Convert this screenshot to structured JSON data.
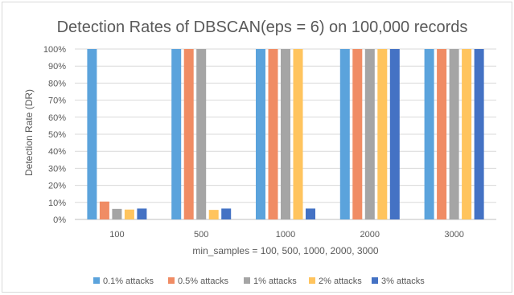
{
  "chart_data": {
    "type": "bar",
    "title": "Detection Rates of DBSCAN(eps = 6) on 100,000 records",
    "xlabel": "min_samples = 100, 500, 1000, 2000, 3000",
    "ylabel": "Detection Rate (DR)",
    "ylim": [
      0,
      100
    ],
    "ytick_values": [
      0,
      10,
      20,
      30,
      40,
      50,
      60,
      70,
      80,
      90,
      100
    ],
    "ytick_labels": [
      "0%",
      "10%",
      "20%",
      "30%",
      "40%",
      "50%",
      "60%",
      "70%",
      "80%",
      "90%",
      "100%"
    ],
    "categories": [
      "100",
      "500",
      "1000",
      "2000",
      "3000"
    ],
    "grid": true,
    "legend_position": "bottom",
    "series": [
      {
        "name": "0.1% attacks",
        "color": "#5ba3dc",
        "values": [
          100,
          100,
          100,
          100,
          100
        ]
      },
      {
        "name": "0.5% attacks",
        "color": "#f08c64",
        "values": [
          10.5,
          100,
          100,
          100,
          100
        ]
      },
      {
        "name": "1% attacks",
        "color": "#a5a5a5",
        "values": [
          6.2,
          100,
          100,
          100,
          100
        ]
      },
      {
        "name": "2% attacks",
        "color": "#ffc45e",
        "values": [
          5.8,
          5.6,
          100,
          100,
          100
        ]
      },
      {
        "name": "3% attacks",
        "color": "#4472c4",
        "values": [
          6.4,
          6.4,
          6.4,
          100,
          100
        ]
      }
    ]
  }
}
